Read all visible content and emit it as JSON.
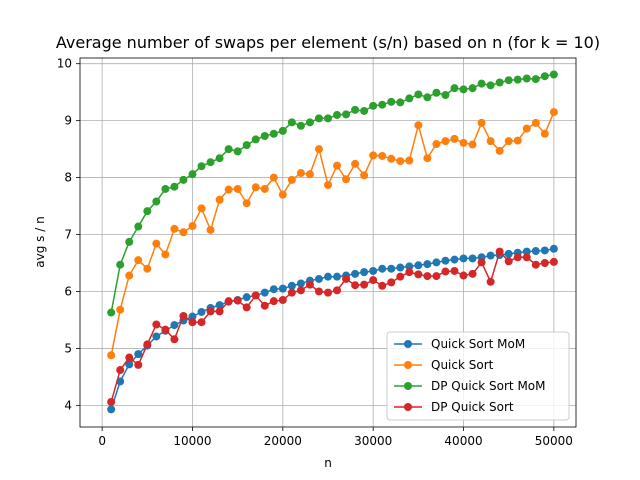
{
  "chart_data": {
    "type": "line",
    "title": "Average number of swaps per element (s/n) based on n (for k = 10)",
    "xlabel": "n",
    "ylabel": "avg s / n",
    "xlim": [
      -2450,
      52450
    ],
    "ylim": [
      3.62,
      10.1
    ],
    "xticks": [
      0,
      10000,
      20000,
      30000,
      40000,
      50000
    ],
    "yticks": [
      4,
      5,
      6,
      7,
      8,
      9,
      10
    ],
    "grid": true,
    "legend_position": "lower-right",
    "x": [
      1000,
      2000,
      3000,
      4000,
      5000,
      6000,
      7000,
      8000,
      9000,
      10000,
      11000,
      12000,
      13000,
      14000,
      15000,
      16000,
      17000,
      18000,
      19000,
      20000,
      21000,
      22000,
      23000,
      24000,
      25000,
      26000,
      27000,
      28000,
      29000,
      30000,
      31000,
      32000,
      33000,
      34000,
      35000,
      36000,
      37000,
      38000,
      39000,
      40000,
      41000,
      42000,
      43000,
      44000,
      45000,
      46000,
      47000,
      48000,
      49000,
      50000
    ],
    "series": [
      {
        "name": "Quick Sort MoM",
        "color": "#1f77b4",
        "values": [
          3.93,
          4.42,
          4.72,
          4.9,
          5.05,
          5.21,
          5.31,
          5.41,
          5.49,
          5.56,
          5.64,
          5.71,
          5.76,
          5.82,
          5.85,
          5.9,
          5.93,
          5.98,
          6.04,
          6.05,
          6.1,
          6.14,
          6.19,
          6.22,
          6.26,
          6.26,
          6.28,
          6.31,
          6.34,
          6.36,
          6.4,
          6.4,
          6.42,
          6.44,
          6.46,
          6.48,
          6.51,
          6.54,
          6.56,
          6.58,
          6.58,
          6.6,
          6.63,
          6.64,
          6.66,
          6.68,
          6.7,
          6.71,
          6.72,
          6.75
        ]
      },
      {
        "name": "Quick Sort",
        "color": "#ff7f0e",
        "values": [
          4.88,
          5.68,
          6.28,
          6.55,
          6.4,
          6.84,
          6.65,
          7.1,
          7.04,
          7.15,
          7.46,
          7.08,
          7.61,
          7.79,
          7.8,
          7.55,
          7.83,
          7.8,
          8.0,
          7.7,
          7.96,
          8.08,
          8.06,
          8.5,
          7.87,
          8.21,
          7.97,
          8.24,
          8.04,
          8.39,
          8.38,
          8.33,
          8.29,
          8.3,
          8.92,
          8.34,
          8.59,
          8.64,
          8.68,
          8.61,
          8.58,
          8.96,
          8.64,
          8.47,
          8.64,
          8.65,
          8.86,
          8.96,
          8.77,
          9.15
        ]
      },
      {
        "name": "DP Quick Sort MoM",
        "color": "#2ca02c",
        "values": [
          5.63,
          6.47,
          6.87,
          7.14,
          7.41,
          7.58,
          7.8,
          7.84,
          7.96,
          8.06,
          8.2,
          8.27,
          8.34,
          8.5,
          8.46,
          8.57,
          8.67,
          8.73,
          8.77,
          8.82,
          8.97,
          8.91,
          8.97,
          9.04,
          9.04,
          9.1,
          9.11,
          9.19,
          9.17,
          9.26,
          9.28,
          9.33,
          9.32,
          9.39,
          9.46,
          9.41,
          9.49,
          9.45,
          9.57,
          9.55,
          9.57,
          9.65,
          9.62,
          9.67,
          9.71,
          9.72,
          9.74,
          9.73,
          9.78,
          9.81
        ]
      },
      {
        "name": "DP Quick Sort",
        "color": "#d62728",
        "values": [
          4.06,
          4.62,
          4.84,
          4.71,
          5.07,
          5.42,
          5.33,
          5.16,
          5.57,
          5.46,
          5.46,
          5.65,
          5.65,
          5.83,
          5.84,
          5.72,
          5.93,
          5.75,
          5.83,
          5.85,
          5.98,
          6.02,
          6.12,
          6.0,
          5.98,
          6.02,
          6.22,
          6.11,
          6.12,
          6.2,
          6.1,
          6.16,
          6.26,
          6.34,
          6.3,
          6.27,
          6.27,
          6.35,
          6.36,
          6.28,
          6.31,
          6.51,
          6.17,
          6.7,
          6.53,
          6.6,
          6.6,
          6.47,
          6.5,
          6.52
        ]
      }
    ]
  }
}
